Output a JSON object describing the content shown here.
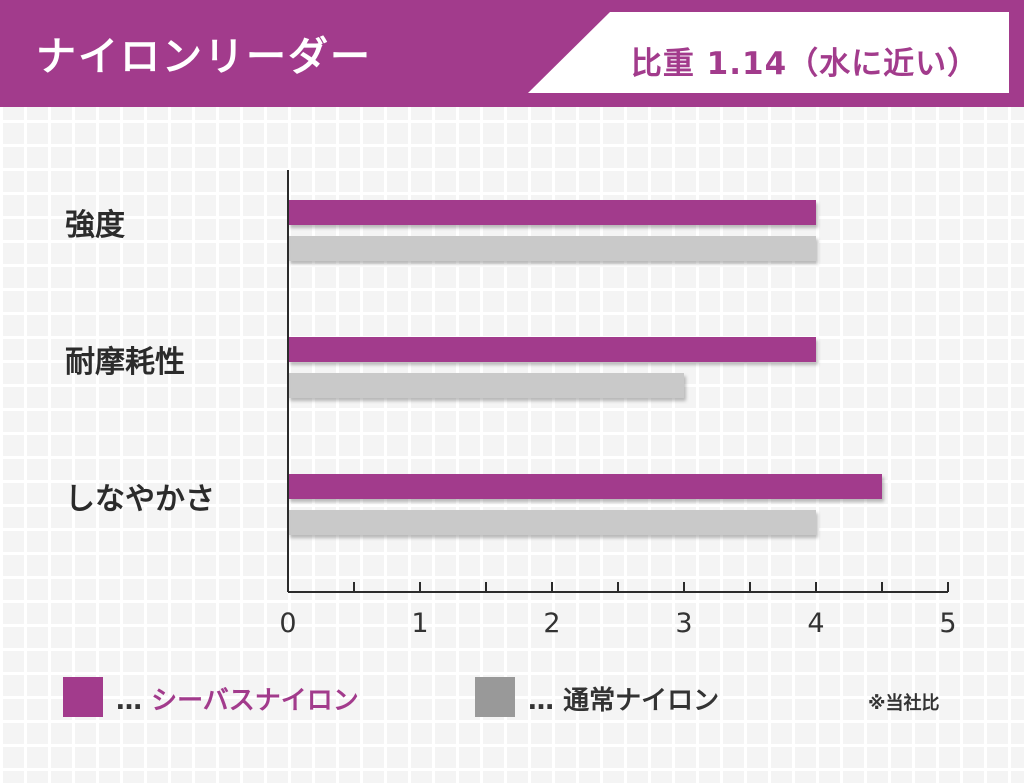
{
  "header": {
    "title": "ナイロンリーダー",
    "spec": "比重 1.14（水に近い）"
  },
  "colors": {
    "brand": "#a23b8c",
    "seabass": "#a23b8c",
    "normal": "#c9c9c9",
    "normal_swatch": "#999999"
  },
  "chart_data": {
    "type": "bar",
    "orientation": "horizontal",
    "categories": [
      "強度",
      "耐摩耗性",
      "しなやかさ"
    ],
    "series": [
      {
        "name": "シーバスナイロン",
        "values": [
          4,
          4,
          4.5
        ]
      },
      {
        "name": "通常ナイロン",
        "values": [
          4,
          3,
          4
        ]
      }
    ],
    "xlim": [
      0,
      5
    ],
    "xticks": [
      0,
      1,
      2,
      3,
      4,
      5
    ],
    "grid": false,
    "legend": "bottom"
  },
  "legend": {
    "prefix": "…",
    "items": [
      "シーバスナイロン",
      "通常ナイロン"
    ]
  },
  "note": "※当社比"
}
